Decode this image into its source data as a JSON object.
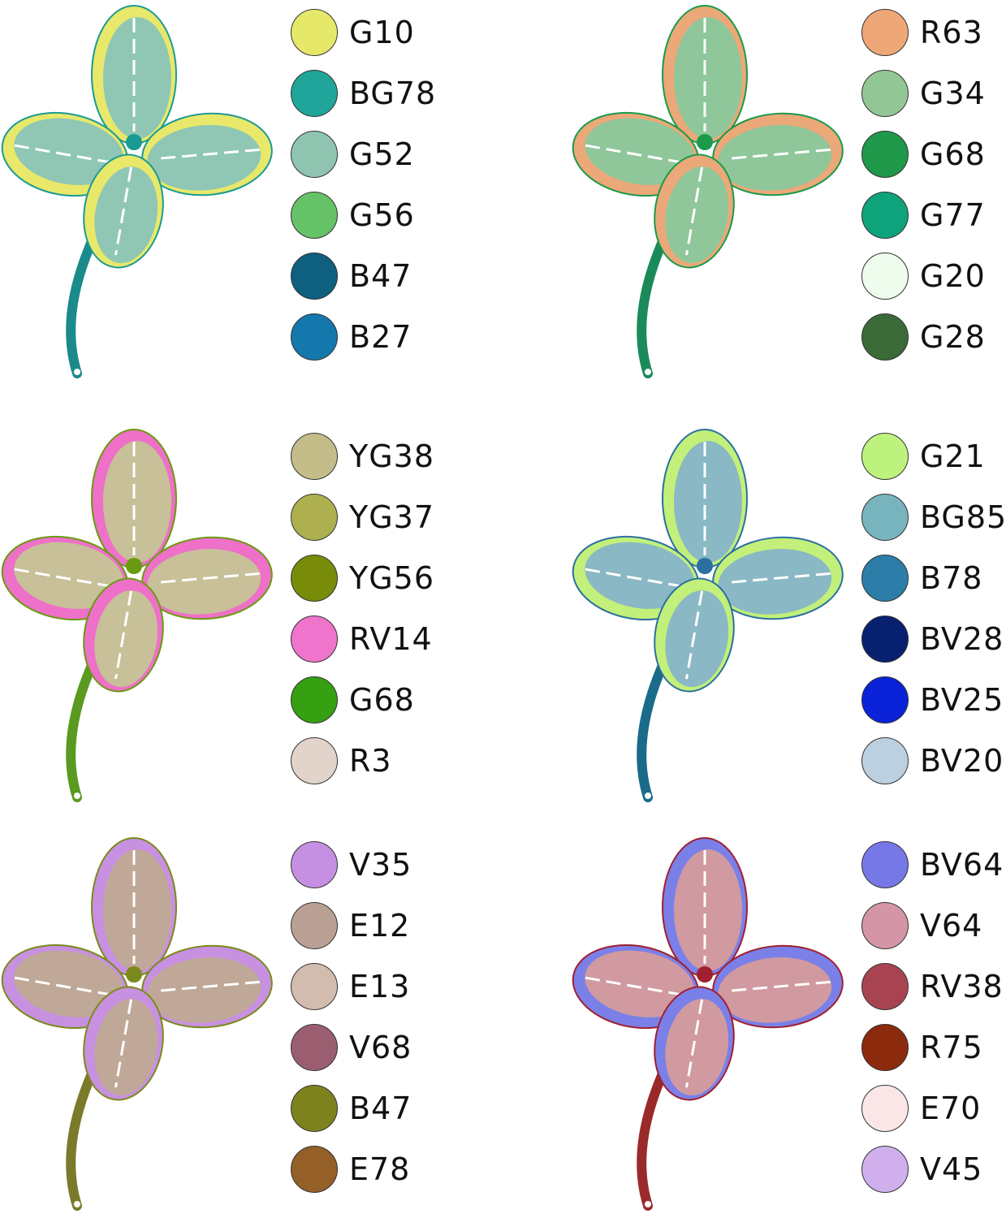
{
  "panels": [
    {
      "clover": {
        "leaf": "#8fc7b4",
        "edge": "#e8e86a",
        "vein": "#1a9a94",
        "stem": "#1a8a8a"
      },
      "swatches": [
        {
          "code": "G10",
          "color": "#e6e86a"
        },
        {
          "code": "BG78",
          "color": "#1fa59a"
        },
        {
          "code": "G52",
          "color": "#8fc4b0"
        },
        {
          "code": "G56",
          "color": "#66c266"
        },
        {
          "code": "B47",
          "color": "#0f5f80"
        },
        {
          "code": "B27",
          "color": "#1478ac"
        }
      ]
    },
    {
      "clover": {
        "leaf": "#8fc79a",
        "edge": "#eba878",
        "vein": "#1a9a4a",
        "stem": "#1a8a5a"
      },
      "swatches": [
        {
          "code": "R63",
          "color": "#eea878"
        },
        {
          "code": "G34",
          "color": "#92c795"
        },
        {
          "code": "G68",
          "color": "#20984a"
        },
        {
          "code": "G77",
          "color": "#0ea37a"
        },
        {
          "code": "G20",
          "color": "#eefcee"
        },
        {
          "code": "G28",
          "color": "#3a6a38"
        }
      ]
    },
    {
      "clover": {
        "leaf": "#c8c098",
        "edge": "#ee70c8",
        "vein": "#6a9a10",
        "stem": "#5a9a20"
      },
      "swatches": [
        {
          "code": "YG38",
          "color": "#c4bd8a"
        },
        {
          "code": "YG37",
          "color": "#aeb050"
        },
        {
          "code": "YG56",
          "color": "#788c0a"
        },
        {
          "code": "RV14",
          "color": "#ee74cc"
        },
        {
          "code": "G68",
          "color": "#35a012"
        },
        {
          "code": "R3",
          "color": "#e2d4ca"
        }
      ]
    },
    {
      "clover": {
        "leaf": "#8ab8c4",
        "edge": "#c2f07a",
        "vein": "#2a70a0",
        "stem": "#1a6a8a"
      },
      "swatches": [
        {
          "code": "G21",
          "color": "#bef27e"
        },
        {
          "code": "BG85",
          "color": "#78b4be"
        },
        {
          "code": "B78",
          "color": "#2c7ea8"
        },
        {
          "code": "BV28",
          "color": "#082070"
        },
        {
          "code": "BV25",
          "color": "#0a22d8"
        },
        {
          "code": "BV20",
          "color": "#bcd0e0"
        }
      ]
    },
    {
      "clover": {
        "leaf": "#c0a898",
        "edge": "#c890e0",
        "vein": "#7a8a1a",
        "stem": "#7a7a2a"
      },
      "swatches": [
        {
          "code": "V35",
          "color": "#c690e2"
        },
        {
          "code": "E12",
          "color": "#baa094"
        },
        {
          "code": "E13",
          "color": "#d2bcb0"
        },
        {
          "code": "V68",
          "color": "#9a5e70"
        },
        {
          "code": "B47",
          "color": "#7e821e"
        },
        {
          "code": "E78",
          "color": "#946028"
        }
      ]
    },
    {
      "clover": {
        "leaf": "#d09aa0",
        "edge": "#7a80e8",
        "vein": "#a02030",
        "stem": "#9a2a2a"
      },
      "swatches": [
        {
          "code": "BV64",
          "color": "#7678e8"
        },
        {
          "code": "V64",
          "color": "#d496a6"
        },
        {
          "code": "RV38",
          "color": "#a84452"
        },
        {
          "code": "R75",
          "color": "#8c2a0e"
        },
        {
          "code": "E70",
          "color": "#fae6e6"
        },
        {
          "code": "V45",
          "color": "#d0b0ec"
        }
      ]
    }
  ]
}
